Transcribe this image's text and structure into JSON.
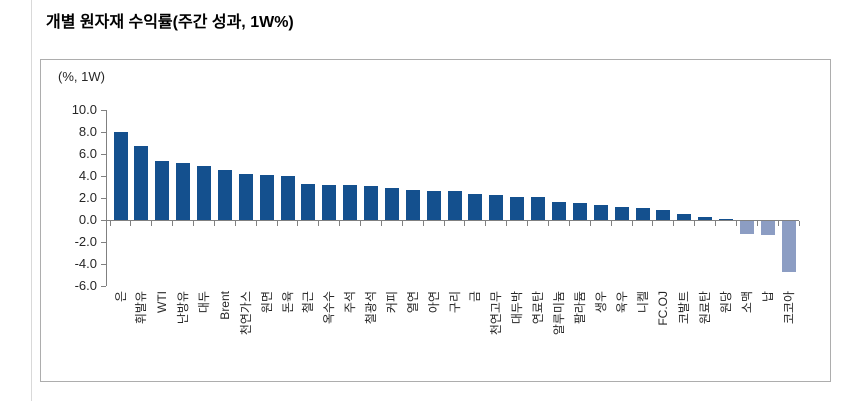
{
  "title": "개별 원자재 수익률(주간 성과, 1W%)",
  "chart_data": {
    "type": "bar",
    "title": "개별 원자재 수익률(주간 성과, 1W%)",
    "unit_label": "(%, 1W)",
    "xlabel": "",
    "ylabel": "",
    "categories": [
      "은",
      "휘발유",
      "WTI",
      "난방유",
      "대두",
      "Brent",
      "천연가스",
      "원면",
      "돈육",
      "철근",
      "옥수수",
      "주석",
      "철광석",
      "커피",
      "열연",
      "아연",
      "구리",
      "금",
      "천연고무",
      "대두박",
      "연료탄",
      "알루미늄",
      "팔라듐",
      "생우",
      "육우",
      "니켈",
      "FC.OJ",
      "코발트",
      "원료탄",
      "원당",
      "소맥",
      "납",
      "코코아"
    ],
    "values": [
      8.0,
      6.7,
      5.4,
      5.2,
      4.9,
      4.5,
      4.2,
      4.1,
      4.0,
      3.3,
      3.2,
      3.2,
      3.1,
      2.9,
      2.7,
      2.6,
      2.6,
      2.4,
      2.3,
      2.1,
      2.1,
      1.6,
      1.5,
      1.4,
      1.2,
      1.1,
      0.9,
      0.5,
      0.3,
      0.1,
      -1.2,
      -1.3,
      -4.6
    ],
    "ylim": [
      -6.0,
      10.0
    ],
    "ytick_step": 2.0,
    "yticks": [
      "10.0",
      "8.0",
      "6.0",
      "4.0",
      "2.0",
      "0.0",
      "-2.0",
      "-4.0",
      "-6.0"
    ],
    "grid": false,
    "legend_position": "none",
    "x_labels_rotated_degrees": 90,
    "colors": {
      "positive_bar": "#14508E",
      "negative_bar": "#8C9DC3",
      "axis": "#808080",
      "frame_border": "#adadad",
      "text": "#262626",
      "title_text": "#000000"
    }
  }
}
